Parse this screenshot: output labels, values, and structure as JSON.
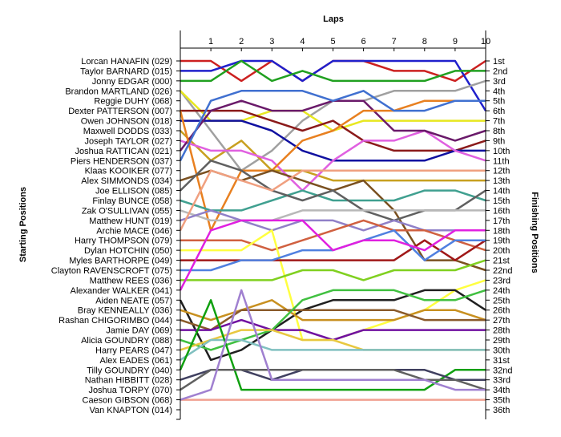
{
  "chart_data": {
    "type": "line",
    "title": "Laps",
    "left_axis_title": "Starting Positions",
    "right_axis_title": "Finishing Positions",
    "x": [
      0,
      1,
      2,
      3,
      4,
      5,
      6,
      7,
      8,
      9,
      10
    ],
    "x_tick_labels": [
      "1",
      "2",
      "3",
      "4",
      "5",
      "6",
      "7",
      "8",
      "9",
      "10"
    ],
    "starting_labels": [
      "Lorcan HANAFIN (029)",
      "Taylor BARNARD (015)",
      "Jonny EDGAR (000)",
      "Brandon MARTLAND (026)",
      "Reggie DUHY (068)",
      "Dexter PATTERSON (007)",
      "Owen JOHNSON (018)",
      "Maxwell DODDS (033)",
      "Joseph TAYLOR (027)",
      "Joshua RATTICAN (021)",
      "Piers HENDERSON (037)",
      "Klaas KOOIKER (077)",
      "Alex SIMMONDS (034)",
      "Joe ELLISON (085)",
      "Finlay BUNCE (058)",
      "Zak O'SULLIVAN (055)",
      "Matthew HUNT (019)",
      "Archie MACE (046)",
      "Harry THOMPSON (079)",
      "Dylan HOTCHIN (050)",
      "Myles BARTHORPE (049)",
      "Clayton RAVENSCROFT (075)",
      "Matthew REES (036)",
      "Alexander WALKER (041)",
      "Aiden NEATE (057)",
      "Bray KENNEALLY (036)",
      "Rashan CHIGORIMBO (044)",
      "Jamie DAY (069)",
      "Alicia GOUNDRY (088)",
      "Harry PEARS (047)",
      "Alex EADES (061)",
      "Tilly GOUNDRY (040)",
      "Nathan HIBBITT (028)",
      "Joshua TORPY (070)",
      "Caeson GIBSON (068)",
      "Van KNAPTON (014)"
    ],
    "finishing_labels": [
      "1st",
      "2nd",
      "3rd",
      "4th",
      "5th",
      "6th",
      "7th",
      "8th",
      "9th",
      "10th",
      "11th",
      "12th",
      "13th",
      "14th",
      "15th",
      "16th",
      "17th",
      "18th",
      "19th",
      "20th",
      "21st",
      "22nd",
      "23rd",
      "24th",
      "25th",
      "26th",
      "27th",
      "28th",
      "29th",
      "30th",
      "31st",
      "32nd",
      "33rd",
      "34th",
      "35th",
      "36th"
    ],
    "y_range": [
      1,
      36
    ],
    "y_reversed": true,
    "grid": false,
    "series": [
      {
        "color": "#cc2020",
        "values": [
          1,
          1,
          3,
          1,
          3,
          1,
          1,
          2,
          2,
          3,
          1
        ]
      },
      {
        "color": "#2020cc",
        "values": [
          2,
          2,
          1,
          1,
          3,
          1,
          1,
          1,
          1,
          1,
          6
        ]
      },
      {
        "color": "#20a020",
        "values": [
          3,
          3,
          1,
          3,
          2,
          3,
          3,
          3,
          3,
          2,
          2
        ]
      },
      {
        "color": "#a0a0a0",
        "values": [
          4,
          8,
          12,
          10,
          7,
          5,
          5,
          4,
          4,
          4,
          3
        ]
      },
      {
        "color": "#e8e820",
        "values": [
          4,
          7,
          7,
          6,
          6,
          8,
          7,
          7,
          7,
          7,
          7
        ]
      },
      {
        "color": "#8b1a1a",
        "values": [
          6,
          6,
          6,
          7,
          8,
          7,
          9,
          10,
          10,
          10,
          9
        ]
      },
      {
        "color": "#1010a0",
        "values": [
          7,
          7,
          7,
          8,
          10,
          11,
          11,
          11,
          11,
          10,
          10
        ]
      },
      {
        "color": "#c8a020",
        "values": [
          8,
          11,
          9,
          12,
          12,
          13,
          13,
          13,
          13,
          13,
          13
        ]
      },
      {
        "color": "#e060e0",
        "values": [
          9,
          10,
          10,
          11,
          14,
          11,
          9,
          9,
          8,
          10,
          11
        ]
      },
      {
        "color": "#6a1a6a",
        "values": [
          10,
          6,
          5,
          6,
          6,
          5,
          5,
          8,
          8,
          9,
          8
        ]
      },
      {
        "color": "#e88020",
        "values": [
          6,
          18,
          12,
          12,
          9,
          8,
          6,
          6,
          5,
          5,
          5
        ]
      },
      {
        "color": "#4070d0",
        "values": [
          11,
          5,
          4,
          4,
          4,
          5,
          4,
          6,
          6,
          5,
          5
        ]
      },
      {
        "color": "#7a5020",
        "values": [
          13,
          12,
          13,
          12,
          13,
          14,
          13,
          16,
          21,
          21,
          22
        ]
      },
      {
        "color": "#40a090",
        "values": [
          15,
          16,
          16,
          15,
          14,
          15,
          15,
          15,
          14,
          14,
          15
        ]
      },
      {
        "color": "#606060",
        "values": [
          14,
          11,
          12,
          14,
          15,
          14,
          16,
          17,
          16,
          16,
          14
        ]
      },
      {
        "color": "#b8b8b8",
        "values": [
          16,
          17,
          17,
          17,
          16,
          16,
          16,
          16,
          16,
          16,
          16
        ]
      },
      {
        "color": "#9080c8",
        "values": [
          17,
          16,
          17,
          18,
          17,
          17,
          18,
          17,
          18,
          18,
          18
        ]
      },
      {
        "color": "#f0a080",
        "values": [
          18,
          12,
          13,
          14,
          12,
          12,
          12,
          12,
          12,
          12,
          12
        ]
      },
      {
        "color": "#d06040",
        "values": [
          19,
          19,
          19,
          20,
          19,
          18,
          17,
          18,
          18,
          19,
          20
        ]
      },
      {
        "color": "#ffff40",
        "values": [
          20,
          20,
          20,
          18,
          29,
          29,
          28,
          27,
          26,
          24,
          23
        ]
      },
      {
        "color": "#a01818",
        "values": [
          21,
          21,
          21,
          21,
          21,
          21,
          21,
          21,
          19,
          21,
          19
        ]
      },
      {
        "color": "#5080e0",
        "values": [
          22,
          22,
          21,
          21,
          20,
          20,
          19,
          18,
          21,
          19,
          19
        ]
      },
      {
        "color": "#80d020",
        "values": [
          23,
          23,
          23,
          23,
          22,
          22,
          23,
          22,
          22,
          22,
          21
        ]
      },
      {
        "color": "#e020e0",
        "values": [
          24,
          18,
          17,
          17,
          17,
          20,
          19,
          19,
          20,
          18,
          18
        ]
      },
      {
        "color": "#202020",
        "values": [
          25,
          31,
          30,
          28,
          26,
          25,
          25,
          25,
          24,
          24,
          26
        ]
      },
      {
        "color": "#c89020",
        "values": [
          26,
          27,
          26,
          25,
          27,
          27,
          27,
          27,
          26,
          26,
          27
        ]
      },
      {
        "color": "#8a5a2a",
        "values": [
          27,
          28,
          26,
          26,
          26,
          26,
          26,
          26,
          27,
          27,
          27
        ]
      },
      {
        "color": "#7010a0",
        "values": [
          28,
          28,
          27,
          28,
          28,
          29,
          28,
          28,
          28,
          28,
          28
        ]
      },
      {
        "color": "#40c040",
        "values": [
          29,
          30,
          29,
          28,
          25,
          24,
          24,
          24,
          25,
          25,
          24
        ]
      },
      {
        "color": "#e8c840",
        "values": [
          30,
          29,
          28,
          28,
          29,
          29,
          30,
          30,
          30,
          30,
          30
        ]
      },
      {
        "color": "#80c0c0",
        "values": [
          31,
          29,
          29,
          30,
          30,
          30,
          30,
          30,
          30,
          30,
          30
        ]
      },
      {
        "color": "#10a010",
        "values": [
          32,
          25,
          34,
          34,
          34,
          34,
          34,
          34,
          34,
          32,
          32
        ]
      },
      {
        "color": "#404060",
        "values": [
          33,
          32,
          32,
          33,
          32,
          32,
          32,
          32,
          32,
          33,
          33
        ]
      },
      {
        "color": "#606060",
        "values": [
          34,
          32,
          32,
          32,
          32,
          32,
          32,
          32,
          33,
          33,
          34
        ]
      },
      {
        "color": "#f0a090",
        "values": [
          35,
          35,
          35,
          35,
          35,
          35,
          35,
          35,
          35,
          35,
          35
        ]
      },
      {
        "color": "#a080d0",
        "values": [
          35,
          34,
          24,
          33,
          33,
          33,
          33,
          33,
          33,
          34,
          34
        ]
      }
    ]
  }
}
